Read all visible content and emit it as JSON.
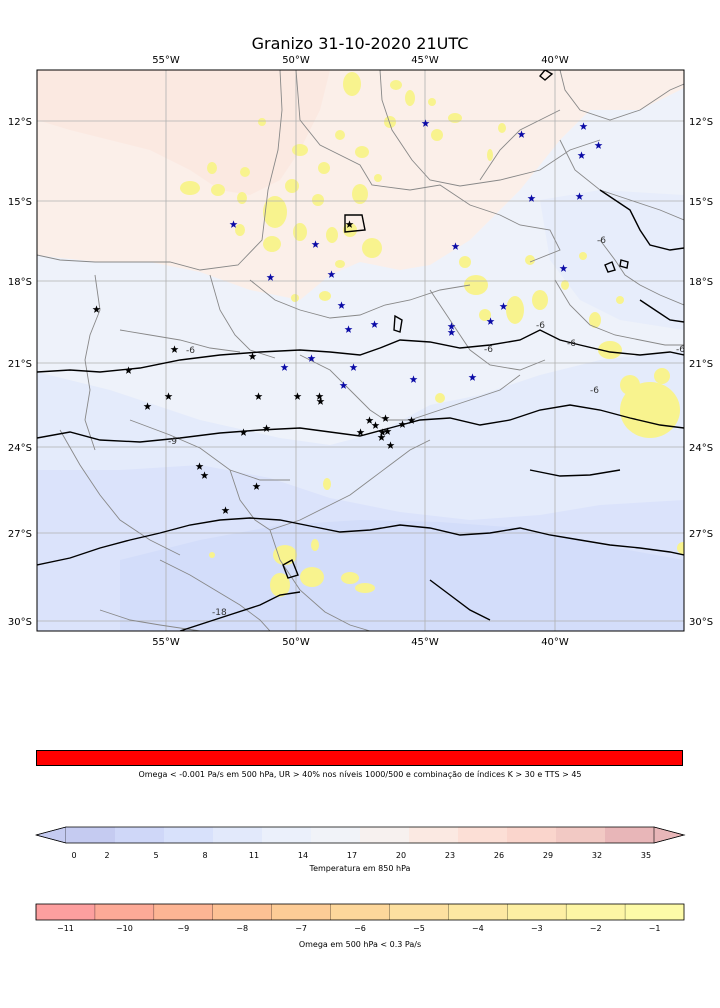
{
  "title": "Granizo 31-10-2020 21UTC",
  "map": {
    "lon_ticks": [
      "55°W",
      "50°W",
      "45°W",
      "40°W"
    ],
    "lat_ticks": [
      "12°S",
      "15°S",
      "18°S",
      "21°S",
      "24°S",
      "27°S",
      "30°S"
    ],
    "contour_labels": [
      "-6",
      "-6",
      "-6",
      "-6",
      "-6",
      "-6",
      "-6",
      "-9",
      "-18"
    ],
    "colors": {
      "warm_bg": "#fbefe9",
      "cool_bg": "#eef2fa",
      "cooler_bg": "#e4ebfb",
      "coldest_bg": "#d6e0fb",
      "omega_yellow": "#f8f38e",
      "border_gray": "#888888",
      "grid_gray": "#b0b0b0",
      "contour_black": "#000000",
      "star_blue": "#0b0ba6",
      "star_black": "#000000"
    }
  },
  "legend_omega_ur": {
    "text": "Omega < -0.001 Pa/s em 500 hPa, UR > 40% nos níveis 1000/500 e combinação de índices K > 30 e TTS > 45",
    "color": "#ff0000"
  },
  "colorbar_temp": {
    "label": "Temperatura em 850 hPa",
    "ticks": [
      "0",
      "2",
      "5",
      "8",
      "11",
      "14",
      "17",
      "20",
      "23",
      "26",
      "29",
      "32",
      "35"
    ],
    "colors": [
      "#c5cbf1",
      "#cfd7f8",
      "#d8e1fb",
      "#e2e9fb",
      "#ebf0fb",
      "#f1f3f8",
      "#f7f1ef",
      "#fbe9e2",
      "#fcdfd6",
      "#fad5cc",
      "#f2c9c4",
      "#e8b6b8"
    ]
  },
  "colorbar_omega": {
    "label": "Omega em 500 hPa < 0.3 Pa/s",
    "ticks": [
      "−11",
      "−10",
      "−9",
      "−8",
      "−7",
      "−6",
      "−5",
      "−4",
      "−3",
      "−2",
      "−1"
    ],
    "colors": [
      "#fd9f9f",
      "#fdaa97",
      "#fdb594",
      "#fdc194",
      "#fdcc96",
      "#fdd79b",
      "#fde0a0",
      "#fde8a2",
      "#fdefa3",
      "#fdf6a5",
      "#fdfba8"
    ]
  }
}
